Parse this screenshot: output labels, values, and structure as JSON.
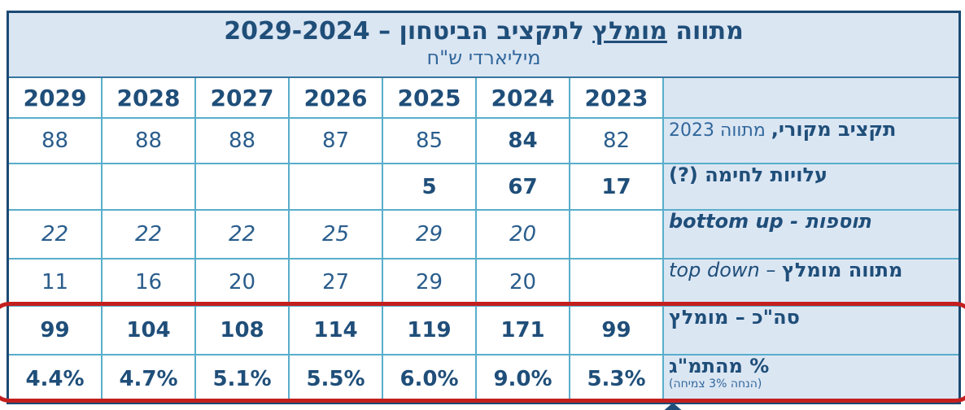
{
  "title": {
    "pre": "מתווה ",
    "underlined": "מומלץ",
    "post": " לתקציב הביטחון – 2029-2024",
    "subtitle": "מיליארדי ש\"ח"
  },
  "columns": [
    "2029",
    "2028",
    "2027",
    "2026",
    "2025",
    "2024",
    "2023"
  ],
  "rows": [
    {
      "label_bold": "תקציב מקורי,",
      "label_regular": " מתווה 2023",
      "values": [
        "88",
        "88",
        "88",
        "87",
        "85",
        "84",
        "82"
      ]
    },
    {
      "label_bold": "עלויות לחימה (?)",
      "values": [
        "",
        "",
        "",
        "",
        "5",
        "67",
        "17"
      ]
    },
    {
      "label_bold": "תוספות",
      "label_sep": " - ",
      "label_latin": "bottom up",
      "values": [
        "22",
        "22",
        "22",
        "25",
        "29",
        "20",
        ""
      ]
    },
    {
      "label_bold": "מתווה מומלץ",
      "label_sep": " – ",
      "label_latin": "top down",
      "values": [
        "11",
        "16",
        "20",
        "27",
        "29",
        "20",
        ""
      ]
    },
    {
      "label_bold": "סה\"כ – מומלץ",
      "values": [
        "99",
        "104",
        "108",
        "114",
        "119",
        "171",
        "99"
      ]
    },
    {
      "label_bold": "% מהתמ\"ג",
      "label_note": "(הנחה 3% צמיחה)",
      "values": [
        "4.4%",
        "4.7%",
        "5.1%",
        "5.5%",
        "6.0%",
        "9.0%",
        "5.3%"
      ]
    }
  ],
  "colors": {
    "header_bg": "#dbe6f3",
    "grid_border": "#58aecb",
    "outer_border": "#1b4a74",
    "text_navy": "#1f4e79",
    "text_blue": "#2a5d8c",
    "highlight_red": "#c41f1f"
  }
}
